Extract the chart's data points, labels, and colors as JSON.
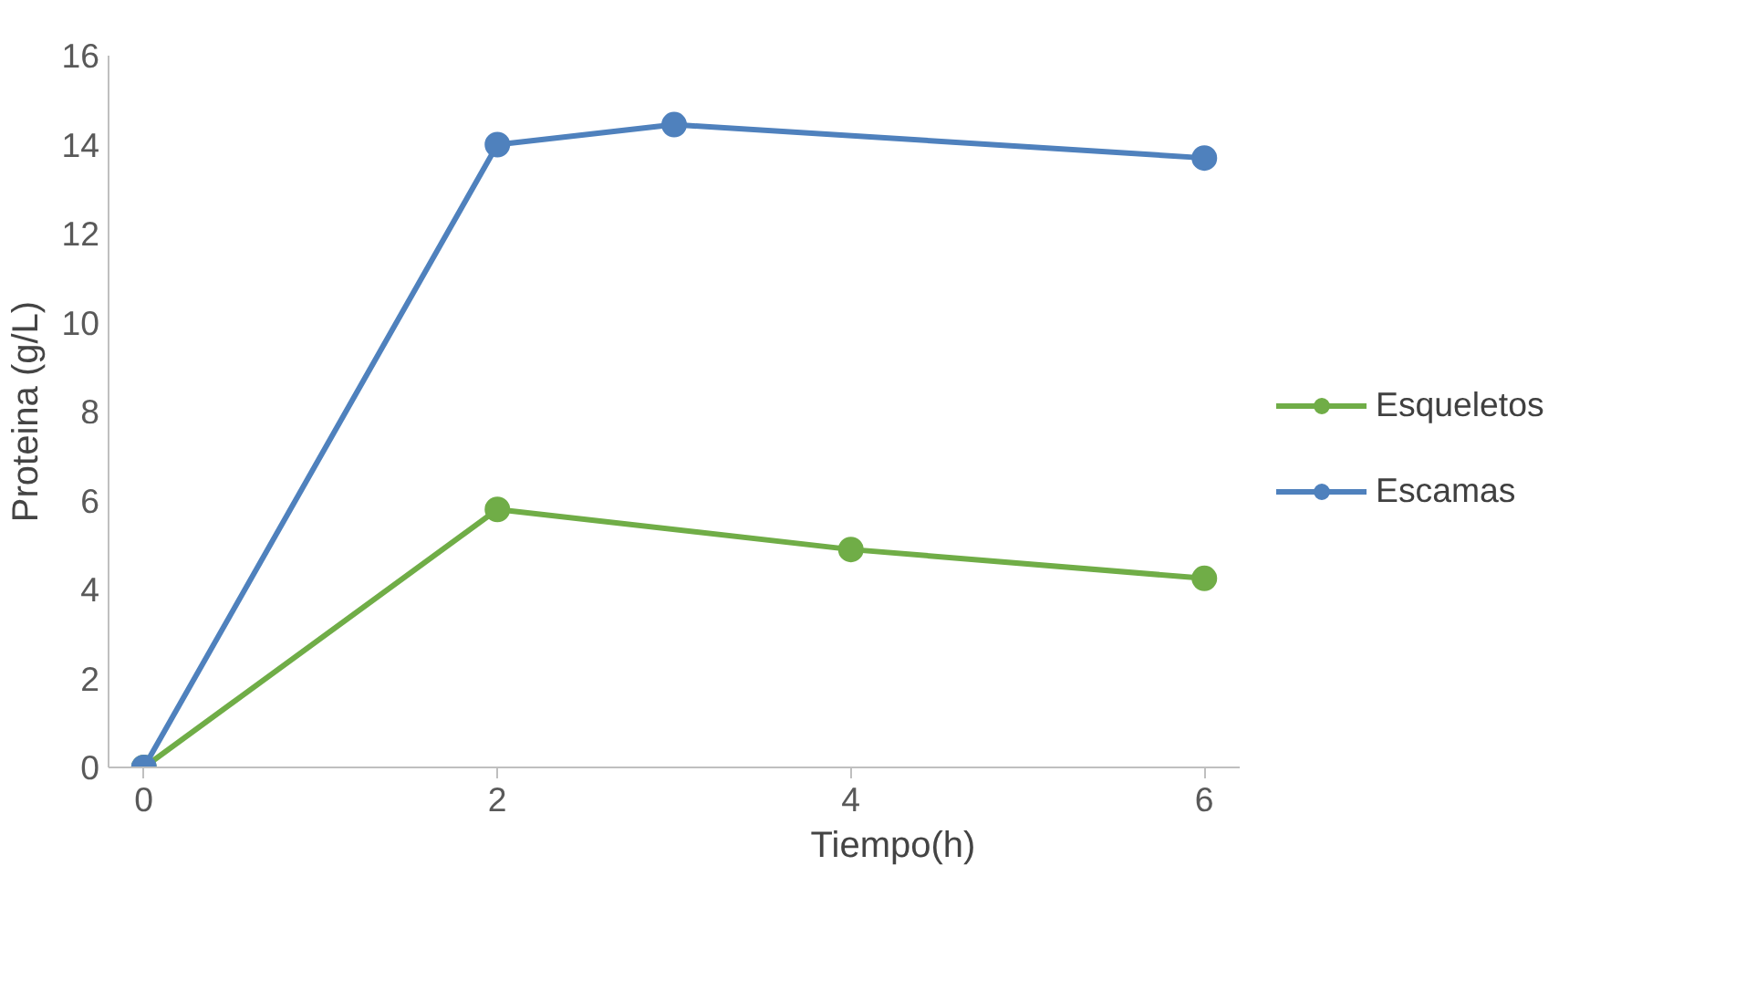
{
  "chart_data": {
    "type": "line",
    "xlabel": "Tiempo(h)",
    "ylabel": "Proteina (g/L)",
    "xlim": [
      -0.2,
      6.2
    ],
    "xticks": [
      0,
      2,
      4,
      6
    ],
    "ylim": [
      0,
      16
    ],
    "yticks": [
      0,
      2,
      4,
      6,
      8,
      10,
      12,
      14,
      16
    ],
    "grid": false,
    "legend": "right",
    "marker": "circle",
    "line_style": "solid",
    "series": [
      {
        "name": "Esqueletos",
        "color": "#70ad47",
        "x": [
          0,
          2,
          4,
          6
        ],
        "values": [
          0,
          5.8,
          4.9,
          4.25
        ]
      },
      {
        "name": "Escamas",
        "color": "#4f81bd",
        "x": [
          0,
          2,
          3,
          6
        ],
        "values": [
          0,
          14,
          14.45,
          13.7
        ]
      }
    ]
  }
}
